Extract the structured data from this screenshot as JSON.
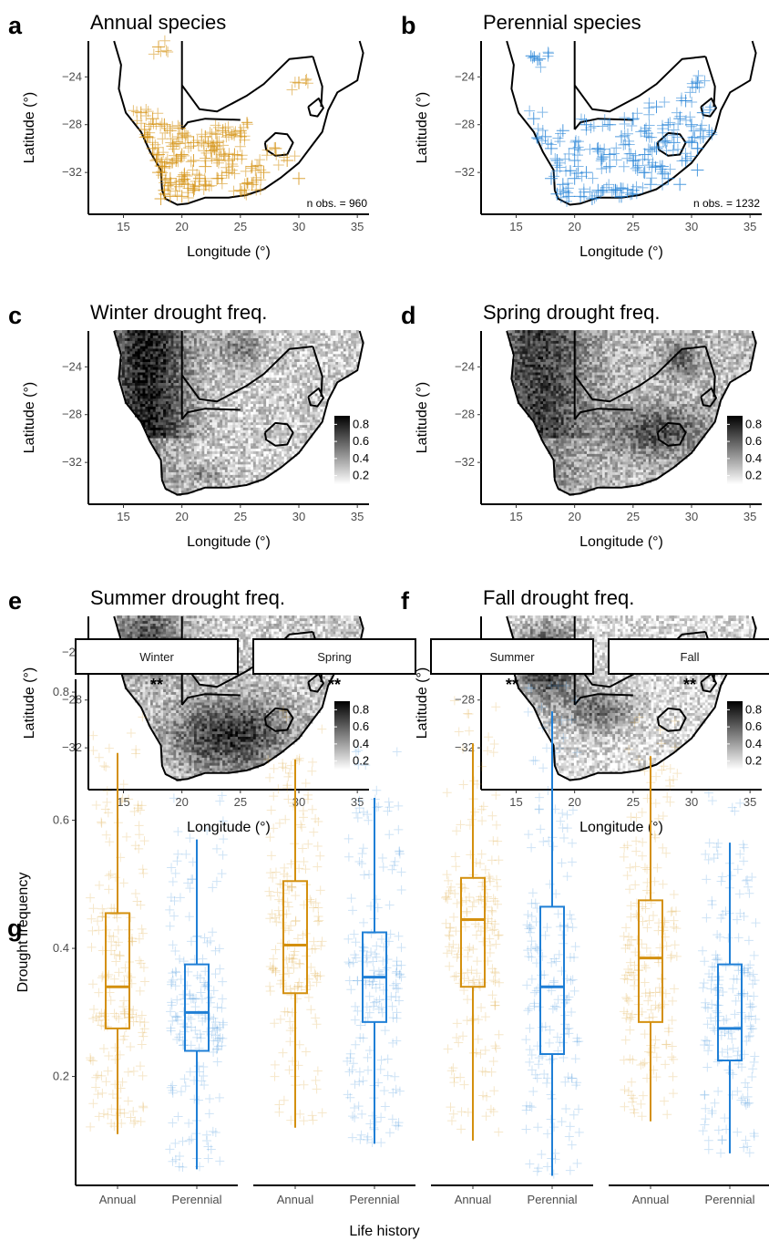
{
  "chart_data": [
    {
      "panel": "a",
      "type": "scatter",
      "title": "Annual species",
      "xlabel": "Longitude (°)",
      "ylabel": "Latitude (°)",
      "xlim": [
        12,
        36
      ],
      "ylim": [
        -35.5,
        -21
      ],
      "xticks": [
        15,
        20,
        25,
        30,
        35
      ],
      "yticks": [
        -24,
        -28,
        -32
      ],
      "annotation": "n obs. = 960",
      "color": "#d4900e",
      "points": [
        [
          18,
          -21.5
        ],
        [
          30,
          -24.5
        ],
        [
          16.5,
          -27
        ],
        [
          17.5,
          -27.5
        ],
        [
          18.5,
          -28
        ],
        [
          19,
          -28.5
        ],
        [
          20.5,
          -29
        ],
        [
          21,
          -29.5
        ],
        [
          22,
          -29
        ],
        [
          23,
          -29.5
        ],
        [
          25,
          -29
        ],
        [
          24.5,
          -30.5
        ],
        [
          23,
          -31
        ],
        [
          22,
          -31.5
        ],
        [
          21,
          -31
        ],
        [
          20,
          -30.5
        ],
        [
          19.5,
          -31
        ],
        [
          18.5,
          -31.5
        ],
        [
          18,
          -32
        ],
        [
          19,
          -32.5
        ],
        [
          19.5,
          -33
        ],
        [
          18.5,
          -33.5
        ],
        [
          19,
          -34
        ],
        [
          20,
          -34
        ],
        [
          21,
          -33.5
        ],
        [
          22,
          -33
        ],
        [
          23,
          -32.5
        ],
        [
          24,
          -32
        ],
        [
          26,
          -31.5
        ],
        [
          27,
          -32
        ],
        [
          26,
          -33
        ],
        [
          25,
          -33.5
        ],
        [
          17,
          -29
        ],
        [
          17.5,
          -30
        ],
        [
          18,
          -30.5
        ],
        [
          16.8,
          -28.4
        ],
        [
          20.2,
          -32.2
        ],
        [
          21.5,
          -32.5
        ],
        [
          18.2,
          -34.2
        ],
        [
          19.8,
          -28.3
        ],
        [
          22.5,
          -30.2
        ],
        [
          29,
          -31
        ],
        [
          30,
          -32.5
        ],
        [
          23.5,
          -28.5
        ],
        [
          25,
          -28.5
        ],
        [
          20.5,
          -33
        ],
        [
          19.2,
          -29.8
        ],
        [
          17.8,
          -31
        ],
        [
          24,
          -31
        ],
        [
          28,
          -30
        ]
      ]
    },
    {
      "panel": "b",
      "type": "scatter",
      "title": "Perennial species",
      "xlabel": "Longitude (°)",
      "ylabel": "Latitude (°)",
      "xlim": [
        12,
        36
      ],
      "ylim": [
        -35.5,
        -21
      ],
      "xticks": [
        15,
        20,
        25,
        30,
        35
      ],
      "yticks": [
        -24,
        -28,
        -32
      ],
      "annotation": "n obs. = 1232",
      "color": "#1f7fd6",
      "points": [
        [
          17,
          -22.5
        ],
        [
          30.5,
          -24.5
        ],
        [
          29.5,
          -26
        ],
        [
          31,
          -27
        ],
        [
          27,
          -26.5
        ],
        [
          25,
          -27.5
        ],
        [
          23,
          -28
        ],
        [
          21,
          -28
        ],
        [
          19,
          -28.5
        ],
        [
          16.5,
          -27.5
        ],
        [
          17.5,
          -29
        ],
        [
          18,
          -30
        ],
        [
          18.5,
          -31
        ],
        [
          18,
          -32.5
        ],
        [
          19,
          -33
        ],
        [
          19.5,
          -34
        ],
        [
          20.5,
          -34
        ],
        [
          22,
          -33.5
        ],
        [
          23.5,
          -33.5
        ],
        [
          25,
          -33.5
        ],
        [
          26.5,
          -33
        ],
        [
          28,
          -32.5
        ],
        [
          29.5,
          -31
        ],
        [
          30.5,
          -30
        ],
        [
          31,
          -29
        ],
        [
          30,
          -28
        ],
        [
          28.5,
          -29.5
        ],
        [
          27,
          -30
        ],
        [
          26,
          -30.5
        ],
        [
          25,
          -31
        ],
        [
          23,
          -31.5
        ],
        [
          21,
          -32
        ],
        [
          20,
          -32.5
        ],
        [
          22,
          -30
        ],
        [
          24,
          -29
        ],
        [
          26,
          -28.5
        ],
        [
          29,
          -27.5
        ],
        [
          31.5,
          -28.5
        ],
        [
          30,
          -29.5
        ],
        [
          20,
          -30
        ],
        [
          24,
          -34
        ],
        [
          21.5,
          -34.2
        ],
        [
          18.5,
          -33.8
        ],
        [
          27.5,
          -31.5
        ],
        [
          29,
          -33
        ],
        [
          30.5,
          -31.8
        ],
        [
          20,
          -31
        ],
        [
          23,
          -30.5
        ],
        [
          26,
          -32
        ],
        [
          28,
          -28
        ]
      ]
    },
    {
      "panel": "c",
      "type": "heatmap",
      "title": "Winter drought freq.",
      "xlabel": "Longitude (°)",
      "ylabel": "Latitude (°)",
      "xticks": [
        15,
        20,
        25,
        30,
        35
      ],
      "yticks": [
        -24,
        -28,
        -32
      ],
      "legend_ticks": [
        0.8,
        0.6,
        0.4,
        0.2
      ],
      "legend_range": [
        0.1,
        0.9
      ],
      "field": "winter"
    },
    {
      "panel": "d",
      "type": "heatmap",
      "title": "Spring drought freq.",
      "xlabel": "Longitude (°)",
      "ylabel": "Latitude (°)",
      "xticks": [
        15,
        20,
        25,
        30,
        35
      ],
      "yticks": [
        -24,
        -28,
        -32
      ],
      "legend_ticks": [
        0.8,
        0.6,
        0.4,
        0.2
      ],
      "legend_range": [
        0.1,
        0.9
      ],
      "field": "spring"
    },
    {
      "panel": "e",
      "type": "heatmap",
      "title": "Summer drought freq.",
      "xlabel": "Longitude (°)",
      "ylabel": "Latitude (°)",
      "xticks": [
        15,
        20,
        25,
        30,
        35
      ],
      "yticks": [
        -24,
        -28,
        -32
      ],
      "legend_ticks": [
        0.8,
        0.6,
        0.4,
        0.2
      ],
      "legend_range": [
        0.1,
        0.9
      ],
      "field": "summer"
    },
    {
      "panel": "f",
      "type": "heatmap",
      "title": "Fall drought freq.",
      "xlabel": "Longitude (°)",
      "ylabel": "Latitude (°)",
      "xticks": [
        15,
        20,
        25,
        30,
        35
      ],
      "yticks": [
        -24,
        -28,
        -32
      ],
      "legend_ticks": [
        0.8,
        0.6,
        0.4,
        0.2
      ],
      "legend_range": [
        0.1,
        0.9
      ],
      "field": "fall"
    },
    {
      "panel": "g",
      "type": "boxplot",
      "xlabel": "Life history",
      "ylabel": "Drought frequency",
      "ylim": [
        0.03,
        0.82
      ],
      "yticks": [
        0.2,
        0.4,
        0.6,
        0.8
      ],
      "categories": [
        "Annual",
        "Perennial"
      ],
      "colors": {
        "Annual": "#d4900e",
        "Perennial": "#1f7fd6"
      },
      "facets": [
        {
          "name": "Winter",
          "sig": "**",
          "boxes": [
            {
              "group": "Annual",
              "min": 0.11,
              "q1": 0.275,
              "median": 0.34,
              "q3": 0.455,
              "max": 0.705
            },
            {
              "group": "Perennial",
              "min": 0.055,
              "q1": 0.24,
              "median": 0.3,
              "q3": 0.375,
              "max": 0.57
            }
          ]
        },
        {
          "name": "Spring",
          "sig": "**",
          "boxes": [
            {
              "group": "Annual",
              "min": 0.12,
              "q1": 0.33,
              "median": 0.405,
              "q3": 0.505,
              "max": 0.695
            },
            {
              "group": "Perennial",
              "min": 0.095,
              "q1": 0.285,
              "median": 0.355,
              "q3": 0.425,
              "max": 0.635
            }
          ]
        },
        {
          "name": "Summer",
          "sig": "**",
          "boxes": [
            {
              "group": "Annual",
              "min": 0.1,
              "q1": 0.34,
              "median": 0.445,
              "q3": 0.51,
              "max": 0.72
            },
            {
              "group": "Perennial",
              "min": 0.045,
              "q1": 0.235,
              "median": 0.34,
              "q3": 0.465,
              "max": 0.77
            }
          ]
        },
        {
          "name": "Fall",
          "sig": "**",
          "boxes": [
            {
              "group": "Annual",
              "min": 0.13,
              "q1": 0.285,
              "median": 0.385,
              "q3": 0.475,
              "max": 0.7
            },
            {
              "group": "Perennial",
              "min": 0.08,
              "q1": 0.225,
              "median": 0.275,
              "q3": 0.375,
              "max": 0.565
            }
          ]
        }
      ]
    }
  ]
}
